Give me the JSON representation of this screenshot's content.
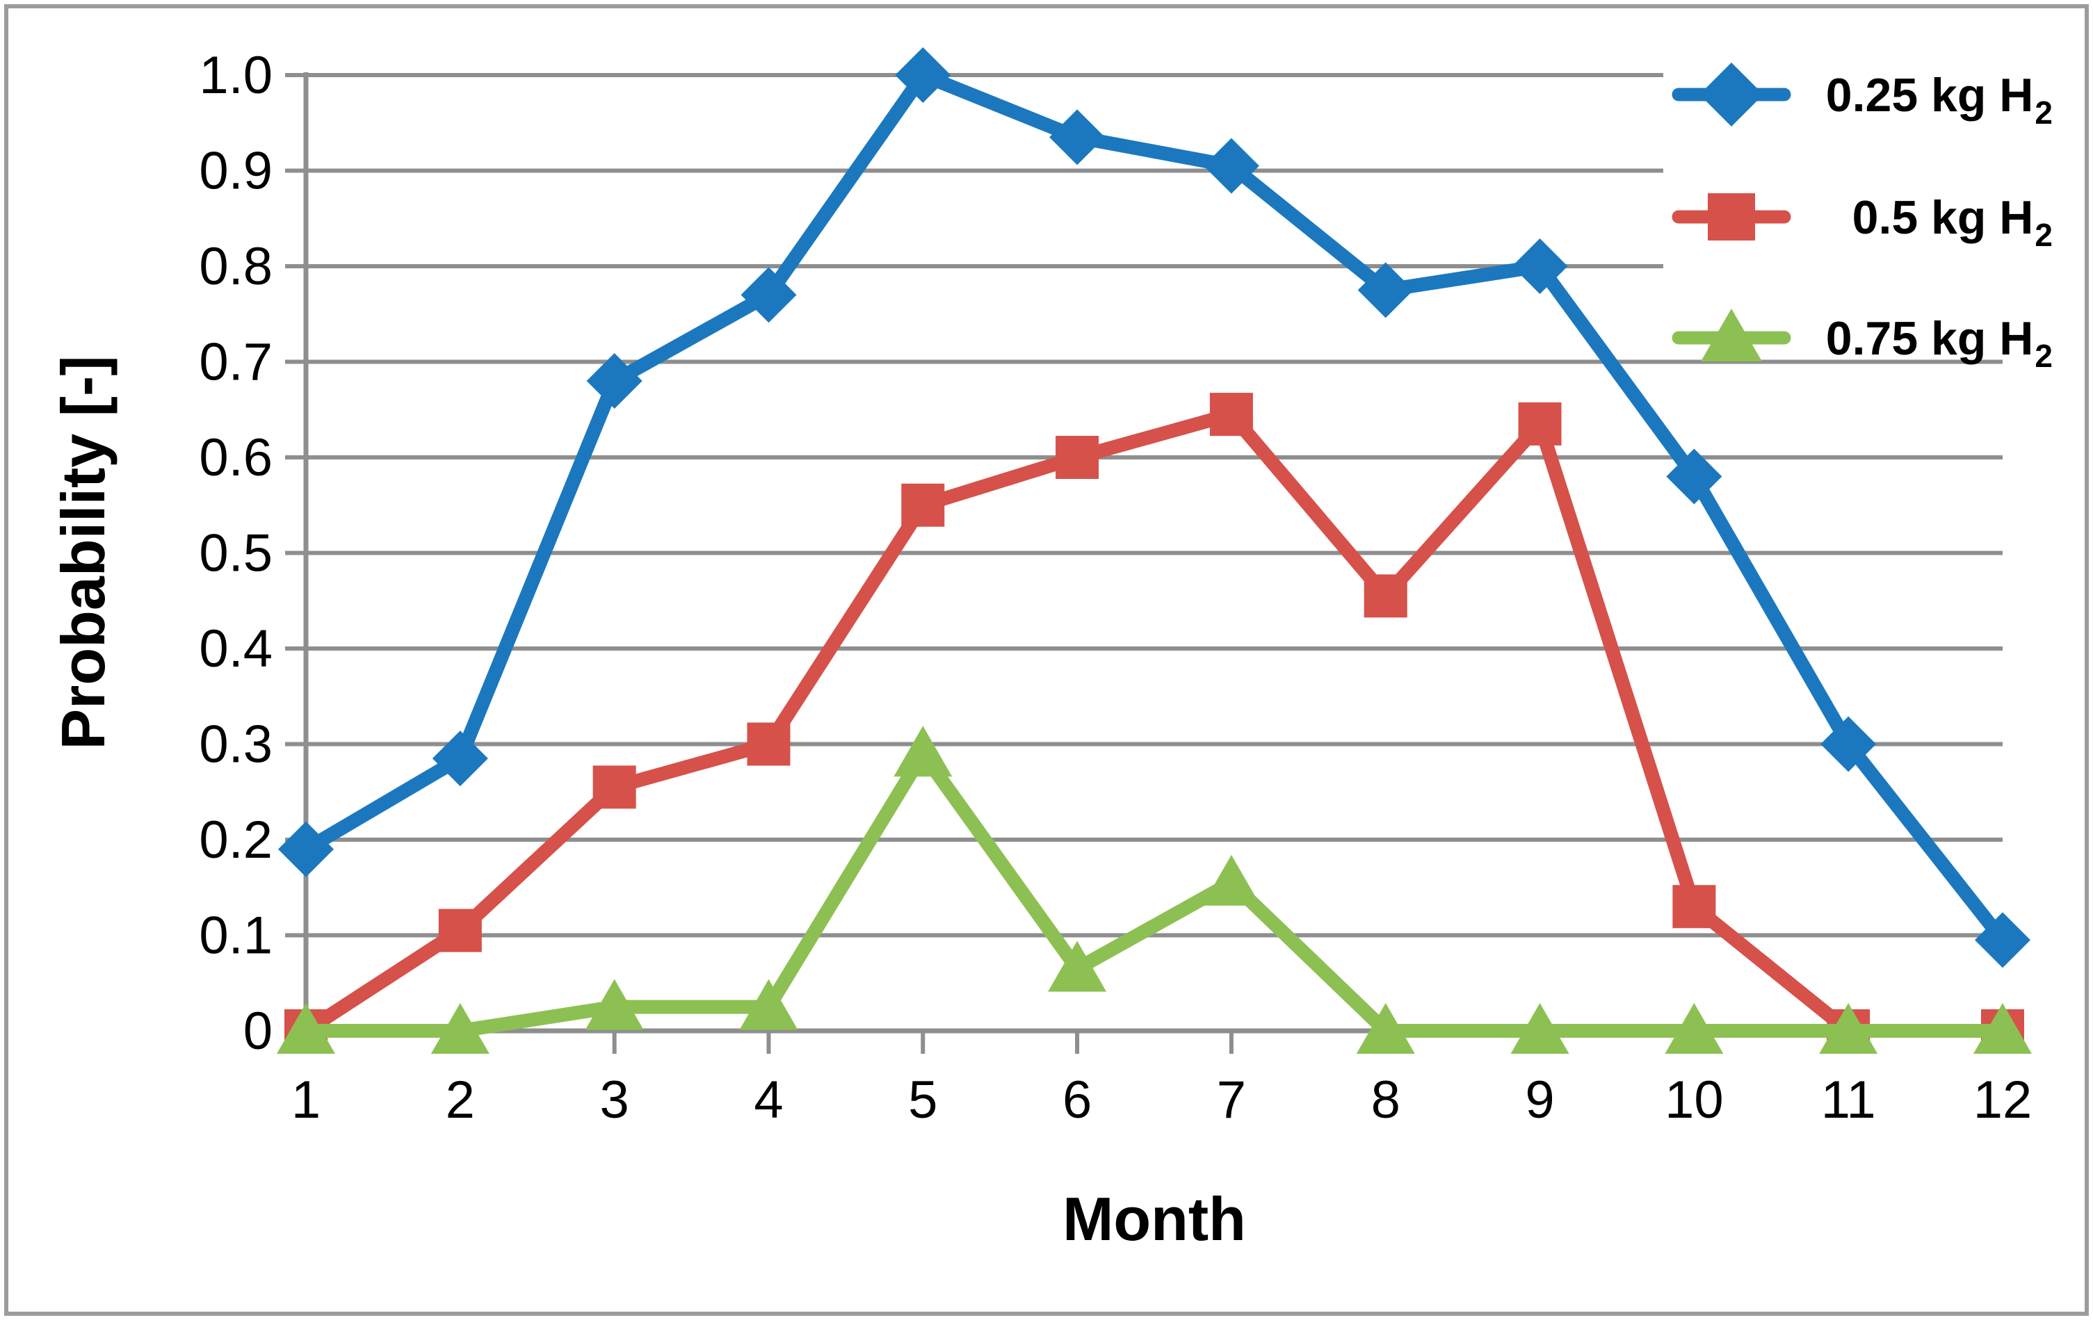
{
  "chart_data": {
    "type": "line",
    "title": "",
    "xlabel": "Month",
    "ylabel": "Probability [-]",
    "x": [
      1,
      2,
      3,
      4,
      5,
      6,
      7,
      8,
      9,
      10,
      11,
      12
    ],
    "xtick_labels": [
      "1",
      "2",
      "3",
      "4",
      "5",
      "6",
      "7",
      "8",
      "9",
      "10",
      "11",
      "12"
    ],
    "ylim": [
      0,
      1.0
    ],
    "ytick_step": 0.1,
    "yticks": [
      1.0,
      0.9,
      0.8,
      0.7,
      0.6,
      0.5,
      0.4,
      0.3,
      0.2,
      0.1,
      0
    ],
    "ytick_labels": [
      "1.0",
      "0.9",
      "0.8",
      "0.7",
      "0.6",
      "0.5",
      "0.4",
      "0.3",
      "0.2",
      "0.1",
      "0"
    ],
    "grid": "horizontal-major",
    "legend_position": "inside-top-right",
    "series": [
      {
        "name": "0.25 kg H₂",
        "label_main": "0.25 kg H",
        "label_sub": "2",
        "color": "#1b78be",
        "marker": "diamond",
        "values": [
          0.19,
          0.285,
          0.68,
          0.77,
          1.0,
          0.935,
          0.905,
          0.775,
          0.8,
          0.58,
          0.3,
          0.095
        ]
      },
      {
        "name": "0.5 kg H₂",
        "label_main": "0.5 kg H",
        "label_sub": "2",
        "color": "#d65149",
        "marker": "square",
        "values": [
          0.0,
          0.105,
          0.255,
          0.3,
          0.55,
          0.6,
          0.645,
          0.455,
          0.635,
          0.13,
          0.0,
          0.0
        ]
      },
      {
        "name": "0.75 kg H₂",
        "label_main": "0.75 kg H",
        "label_sub": "2",
        "color": "#8dc052",
        "marker": "triangle",
        "values": [
          0.0,
          0.0,
          0.025,
          0.025,
          0.29,
          0.065,
          0.155,
          0.0,
          0.0,
          0.0,
          0.0,
          0.0
        ]
      }
    ],
    "colors": {
      "gridline": "#8e8e8e",
      "axis": "#8e8e8e",
      "frame_border": "#9c9c9c",
      "background": "#ffffff",
      "text": "#000000"
    }
  }
}
